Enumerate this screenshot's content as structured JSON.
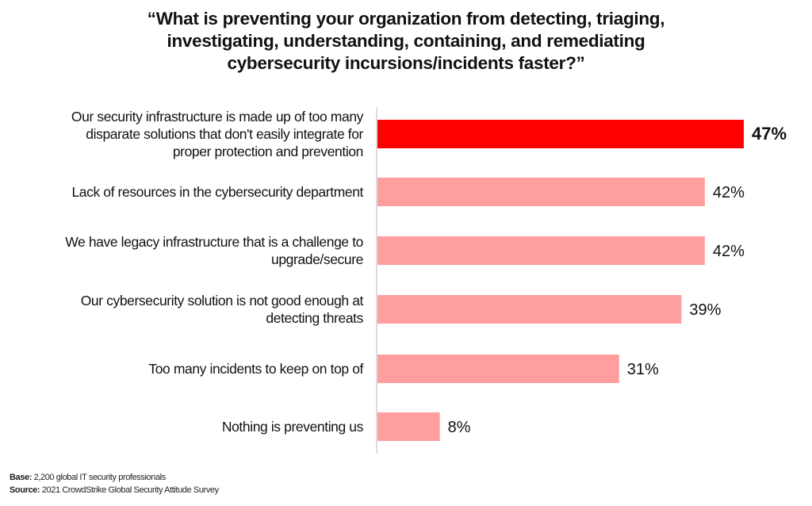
{
  "chart_data": {
    "type": "bar",
    "orientation": "horizontal",
    "title_lines": [
      "“What is preventing your organization from detecting, triaging,",
      "investigating, understanding, containing, and remediating",
      "cybersecurity incursions/incidents faster?”"
    ],
    "categories": [
      [
        "Our security infrastructure is made up of too many",
        "disparate solutions that don't easily integrate for",
        "proper protection and prevention"
      ],
      [
        "Lack of resources in the cybersecurity department"
      ],
      [
        "We have legacy infrastructure that is a challenge to",
        "upgrade/secure"
      ],
      [
        "Our cybersecurity solution is not good enough at",
        "detecting threats"
      ],
      [
        "Too many incidents to keep on top of"
      ],
      [
        "Nothing is preventing us"
      ]
    ],
    "values": [
      47,
      42,
      42,
      39,
      31,
      8
    ],
    "value_labels": [
      "47%",
      "42%",
      "42%",
      "39%",
      "31%",
      "8%"
    ],
    "highlight_index": 0,
    "xlim": [
      0,
      47
    ],
    "grid": false,
    "colors": {
      "highlight": "#ff0000",
      "bar": "#ff9e9e",
      "axis": "#bbbbbb"
    }
  },
  "footer": {
    "base_label": "Base:",
    "base_text": "2,200 global IT security professionals",
    "source_label": "Source:",
    "source_text": "2021 CrowdStrike Global Security Attitude Survey"
  }
}
